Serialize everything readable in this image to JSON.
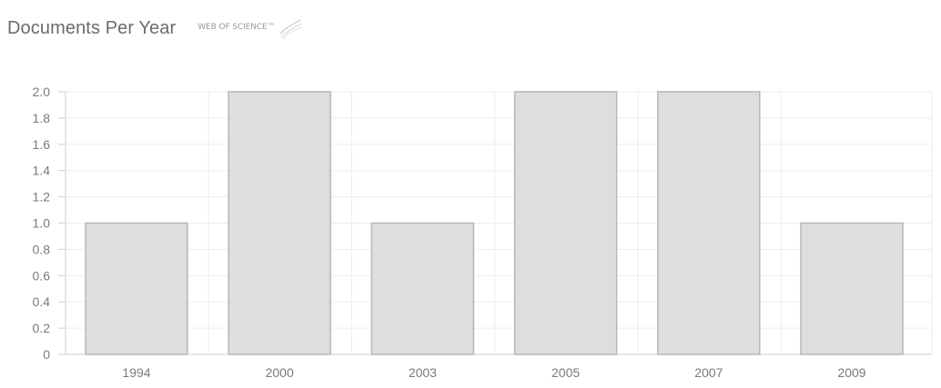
{
  "header": {
    "title": "Documents Per Year",
    "brand": "WEB OF SCIENCE™"
  },
  "chart_data": {
    "type": "bar",
    "categories": [
      "1994",
      "2000",
      "2003",
      "2005",
      "2007",
      "2009"
    ],
    "values": [
      1,
      2,
      1,
      2,
      2,
      1
    ],
    "ylim": [
      0,
      2
    ],
    "yticks": [
      "0",
      "0.2",
      "0.4",
      "0.6",
      "0.8",
      "1.0",
      "1.2",
      "1.4",
      "1.6",
      "1.8",
      "2.0"
    ],
    "grid": true,
    "legend": "none",
    "colors": {
      "bar_fill": "#dedede",
      "bar_stroke": "#b7b7b7",
      "grid": "#ededed",
      "axis": "#cfcfcf",
      "text": "#7a7a7a"
    }
  }
}
